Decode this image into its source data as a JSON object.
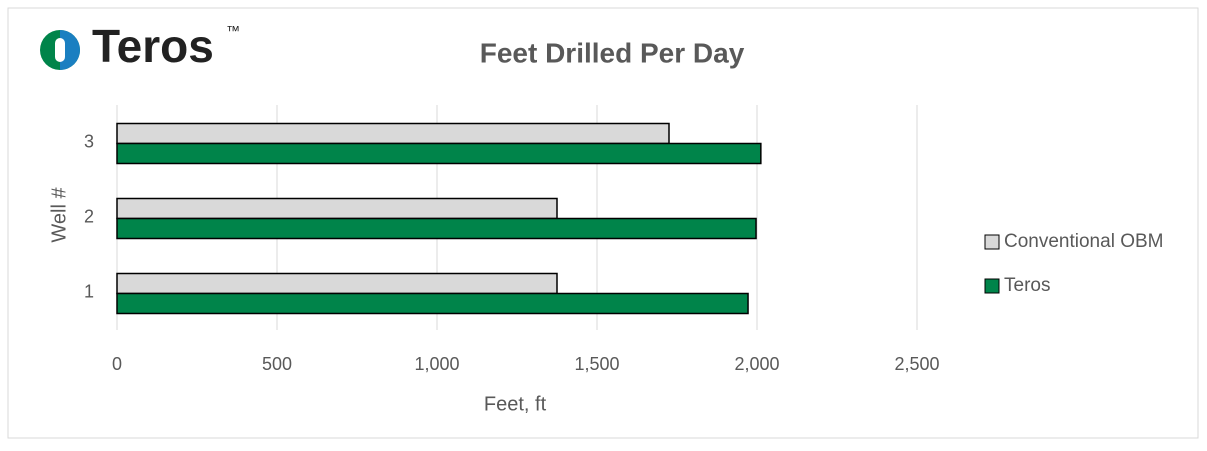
{
  "logo": {
    "name": "Teros",
    "mark": "™"
  },
  "chart_data": {
    "type": "hbar",
    "title": "Feet Drilled Per Day",
    "x_label": "Feet, ft",
    "y_label": "Well #",
    "categories": [
      "1",
      "2",
      "3"
    ],
    "series": [
      {
        "name": "Conventional OBM",
        "color": "#d9d9d9",
        "values": [
          1375,
          1375,
          1725
        ]
      },
      {
        "name": "Teros",
        "color": "#00844a",
        "values": [
          1972,
          1997,
          2012
        ]
      }
    ],
    "xlim": [
      0,
      2500
    ],
    "xticks": [
      0,
      500,
      {
        "value": 1000,
        "label": "1,000"
      },
      {
        "value": 1500,
        "label": "1,500"
      },
      {
        "value": 2000,
        "label": "2,000"
      },
      {
        "value": 2500,
        "label": "2,500"
      }
    ],
    "grid": true,
    "legend": "right"
  }
}
